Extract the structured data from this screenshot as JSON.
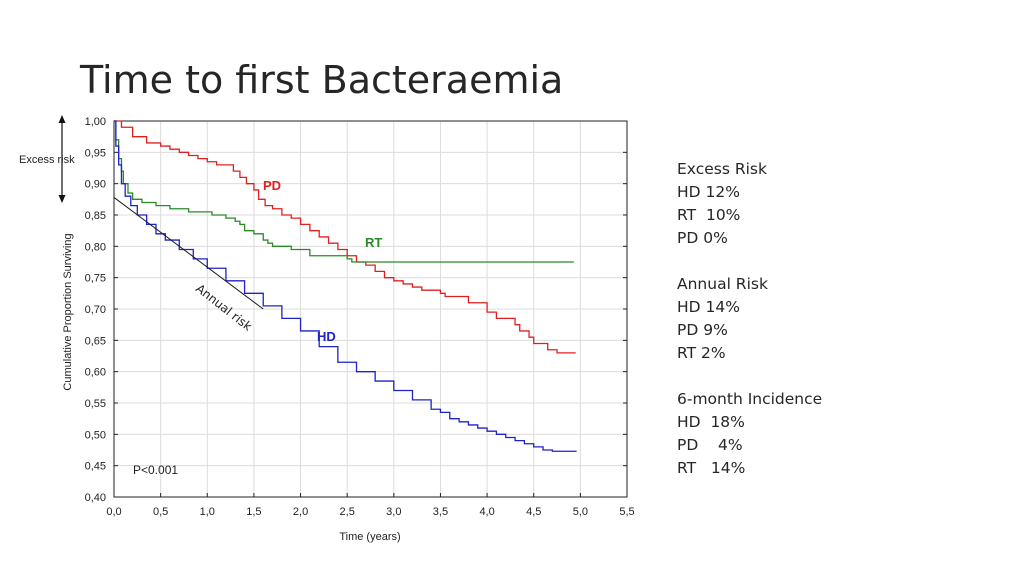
{
  "title": "Time to first Bacteraemia",
  "side_notes": {
    "excess_risk": [
      "Excess Risk",
      "HD 12%",
      "RT  10%",
      "PD 0%"
    ],
    "annual_risk": [
      "Annual Risk",
      "HD 14%",
      "PD 9%",
      "RT 2%"
    ],
    "incidence": [
      "6-month Incidence",
      "HD  18%",
      "PD    4%",
      "RT   14%"
    ]
  },
  "chart_data": {
    "type": "line",
    "xlabel": "Time (years)",
    "ylabel": "Cumulative Proportion Surviving",
    "xlim": [
      0,
      5.5
    ],
    "ylim": [
      0.4,
      1.0
    ],
    "x_ticks": [
      "0,0",
      "0,5",
      "1,0",
      "1,5",
      "2,0",
      "2,5",
      "3,0",
      "3,5",
      "4,0",
      "4,5",
      "5,0",
      "5,5"
    ],
    "y_ticks": [
      "0,40",
      "0,45",
      "0,50",
      "0,55",
      "0,60",
      "0,65",
      "0,70",
      "0,75",
      "0,80",
      "0,85",
      "0,90",
      "0,95",
      "1,00"
    ],
    "grid": true,
    "series": [
      {
        "name": "PD",
        "color": "#e0201e",
        "x": [
          0,
          0.08,
          0.2,
          0.35,
          0.5,
          0.6,
          0.7,
          0.8,
          0.9,
          1.0,
          1.1,
          1.2,
          1.28,
          1.35,
          1.42,
          1.5,
          1.55,
          1.62,
          1.7,
          1.8,
          1.9,
          2.0,
          2.1,
          2.2,
          2.3,
          2.4,
          2.5,
          2.6,
          2.7,
          2.8,
          2.9,
          3.0,
          3.1,
          3.2,
          3.3,
          3.5,
          3.55,
          3.8,
          4.0,
          4.1,
          4.3,
          4.35,
          4.45,
          4.5,
          4.65,
          4.75,
          4.95
        ],
        "y": [
          1.0,
          0.99,
          0.975,
          0.965,
          0.96,
          0.955,
          0.95,
          0.945,
          0.94,
          0.935,
          0.93,
          0.93,
          0.92,
          0.91,
          0.9,
          0.89,
          0.875,
          0.865,
          0.86,
          0.85,
          0.845,
          0.835,
          0.825,
          0.815,
          0.805,
          0.795,
          0.785,
          0.775,
          0.77,
          0.76,
          0.75,
          0.745,
          0.74,
          0.735,
          0.73,
          0.725,
          0.72,
          0.71,
          0.695,
          0.685,
          0.675,
          0.665,
          0.655,
          0.645,
          0.635,
          0.63,
          0.63
        ]
      },
      {
        "name": "RT",
        "color": "#2a8a2a",
        "x": [
          0,
          0.02,
          0.05,
          0.08,
          0.1,
          0.15,
          0.2,
          0.3,
          0.45,
          0.6,
          0.8,
          1.05,
          1.2,
          1.3,
          1.35,
          1.4,
          1.5,
          1.6,
          1.65,
          1.7,
          1.9,
          2.1,
          2.5,
          2.55,
          2.7,
          3.0,
          4.93
        ],
        "y": [
          1.0,
          0.97,
          0.94,
          0.92,
          0.9,
          0.885,
          0.875,
          0.87,
          0.865,
          0.86,
          0.855,
          0.85,
          0.845,
          0.84,
          0.835,
          0.825,
          0.82,
          0.81,
          0.805,
          0.8,
          0.795,
          0.785,
          0.78,
          0.775,
          0.775,
          0.775,
          0.775
        ]
      },
      {
        "name": "HD",
        "color": "#1e22c9",
        "x": [
          0,
          0.02,
          0.05,
          0.08,
          0.12,
          0.18,
          0.25,
          0.35,
          0.45,
          0.55,
          0.7,
          0.85,
          1.0,
          1.2,
          1.4,
          1.6,
          1.8,
          2.0,
          2.2,
          2.4,
          2.6,
          2.8,
          3.0,
          3.2,
          3.4,
          3.5,
          3.6,
          3.7,
          3.8,
          3.9,
          4.0,
          4.1,
          4.2,
          4.3,
          4.4,
          4.5,
          4.6,
          4.7,
          4.96
        ],
        "y": [
          1.0,
          0.96,
          0.93,
          0.9,
          0.88,
          0.865,
          0.85,
          0.835,
          0.82,
          0.81,
          0.795,
          0.78,
          0.765,
          0.745,
          0.725,
          0.705,
          0.685,
          0.665,
          0.64,
          0.615,
          0.6,
          0.585,
          0.57,
          0.555,
          0.54,
          0.535,
          0.525,
          0.52,
          0.515,
          0.51,
          0.505,
          0.5,
          0.495,
          0.49,
          0.485,
          0.48,
          0.475,
          0.473,
          0.473
        ]
      },
      {
        "name": "Annual risk",
        "color": "#1a1a1a",
        "x": [
          0,
          1.6
        ],
        "y": [
          0.878,
          0.7
        ]
      }
    ],
    "annotations": {
      "pd_label": "PD",
      "rt_label": "RT",
      "hd_label": "HD",
      "annual_risk": "Annual risk",
      "excess_risk": "Excess risk",
      "p_value": "P<0.001"
    }
  }
}
